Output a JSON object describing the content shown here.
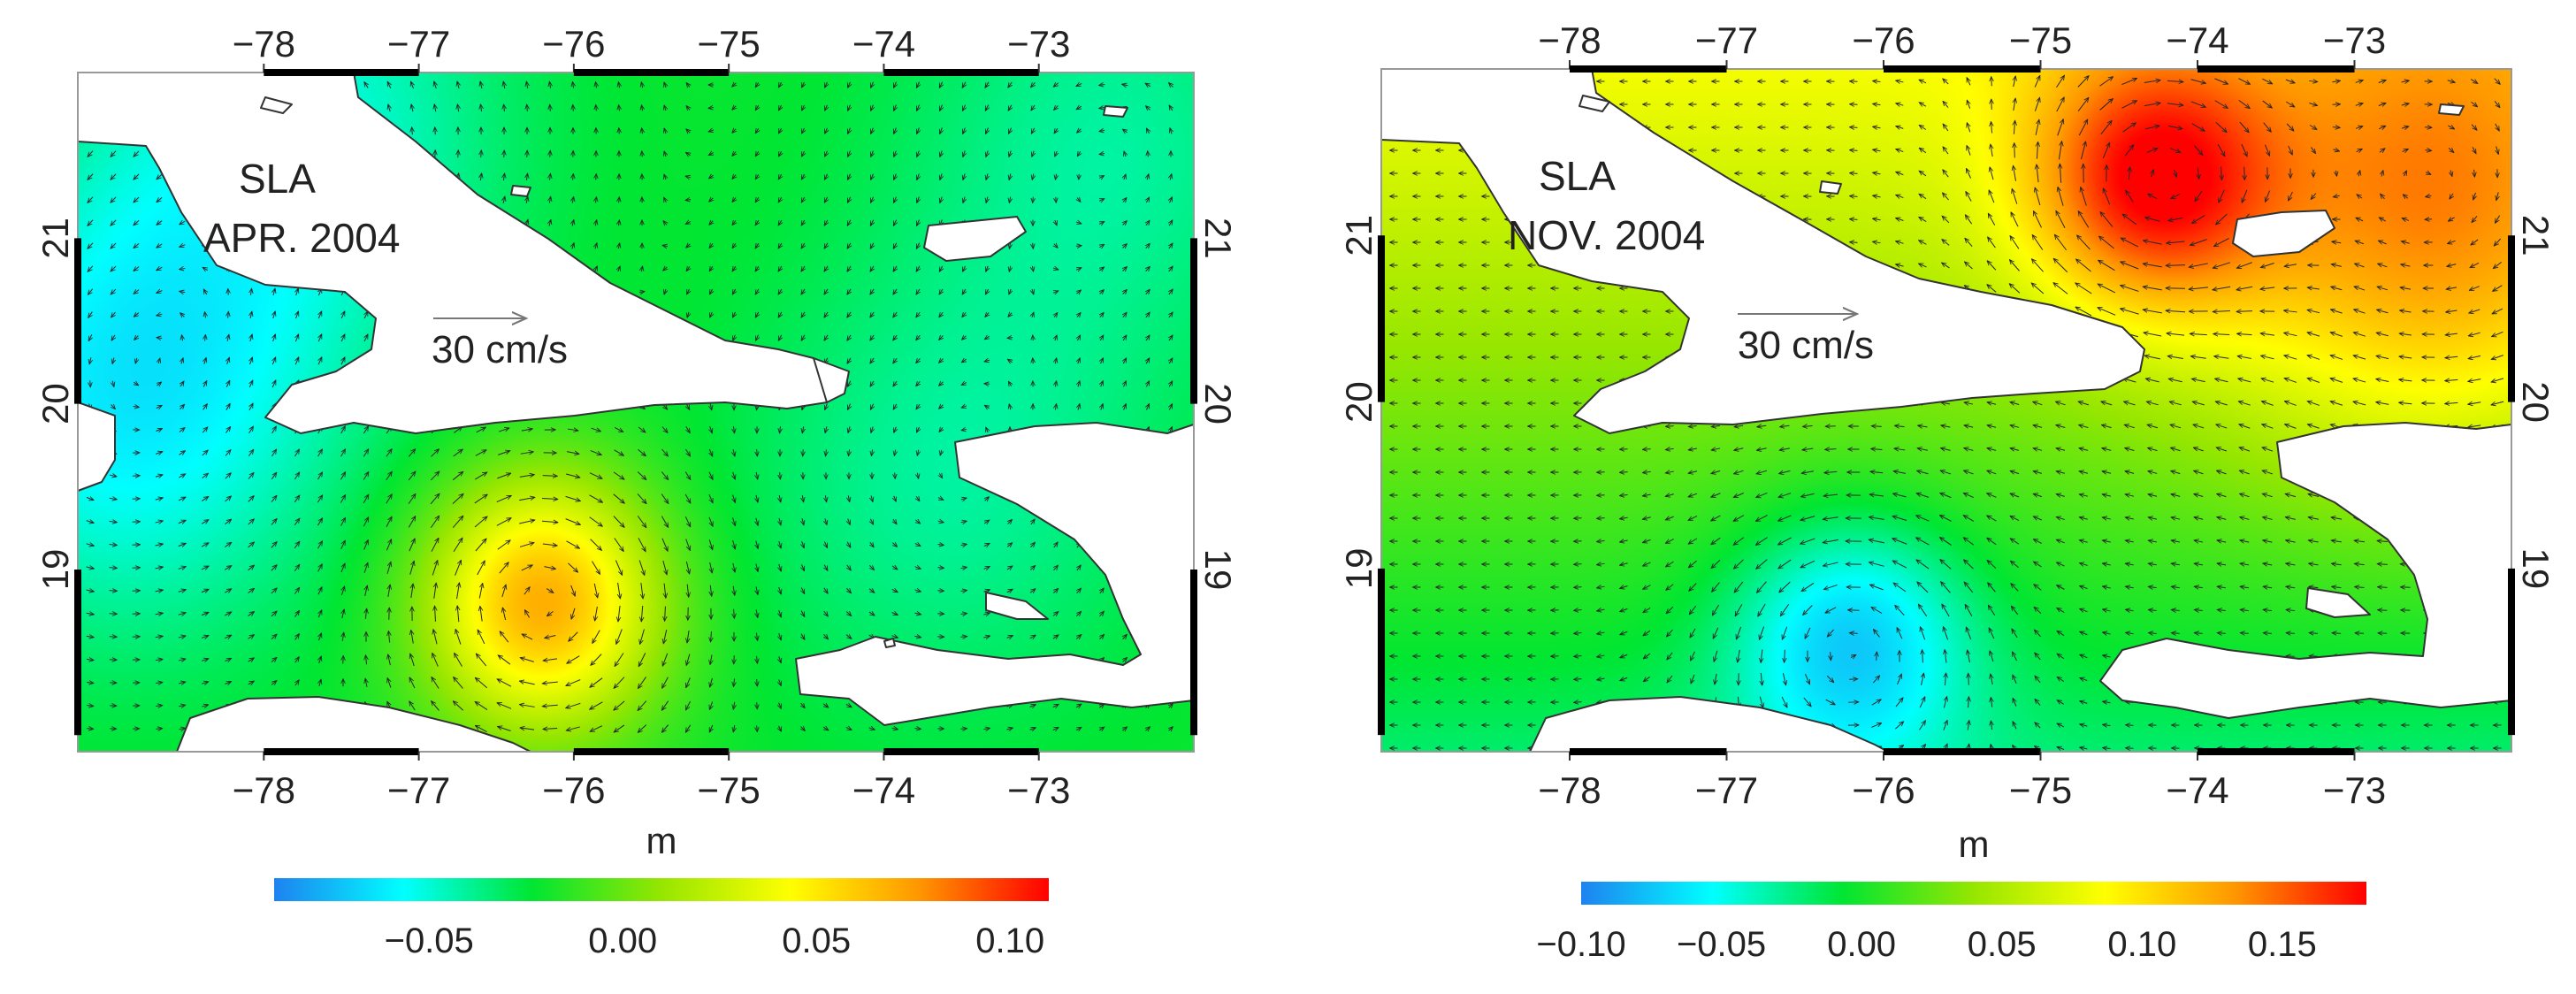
{
  "chart_data": [
    {
      "type": "heatmap",
      "title": "SLA",
      "subtitle": "APR. 2004",
      "unit_label": "m",
      "colorbar_ticks": [
        "−0.05",
        "0.00",
        "0.05",
        "0.10"
      ],
      "colorbar_range": [
        -0.09,
        0.11
      ],
      "vector_scale_label": "30 cm/s",
      "x_ticks": [
        "−78",
        "−77",
        "−76",
        "−75",
        "−74",
        "−73"
      ],
      "y_ticks": [
        "21",
        "20",
        "19"
      ],
      "xlim": [
        -79.2,
        -72.0
      ],
      "ylim": [
        17.9,
        22.0
      ],
      "field_features": [
        {
          "type": "anticyclonic_eddy",
          "lon": -76.2,
          "lat": 18.8,
          "sla": 0.07
        },
        {
          "type": "low",
          "lon": -78.9,
          "lat": 20.0,
          "sla": -0.06
        },
        {
          "type": "low",
          "lon": -77.8,
          "lat": 21.7,
          "sla": -0.05
        },
        {
          "type": "low",
          "lon": -73.6,
          "lat": 19.5,
          "sla": -0.04
        },
        {
          "type": "low",
          "lon": -72.5,
          "lat": 21.6,
          "sla": -0.04
        }
      ]
    },
    {
      "type": "heatmap",
      "title": "SLA",
      "subtitle": "NOV. 2004",
      "unit_label": "m",
      "colorbar_ticks": [
        "−0.10",
        "−0.05",
        "0.00",
        "0.05",
        "0.10",
        "0.15"
      ],
      "colorbar_range": [
        -0.1,
        0.18
      ],
      "vector_scale_label": "30 cm/s",
      "x_ticks": [
        "−78",
        "−77",
        "−76",
        "−75",
        "−74",
        "−73"
      ],
      "y_ticks": [
        "21",
        "20",
        "19"
      ],
      "xlim": [
        -79.2,
        -72.0
      ],
      "ylim": [
        17.9,
        22.0
      ],
      "field_features": [
        {
          "type": "anticyclonic_eddy",
          "lon": -74.3,
          "lat": 21.3,
          "sla": 0.13
        },
        {
          "type": "high",
          "lon": -72.5,
          "lat": 21.0,
          "sla": 0.1
        },
        {
          "type": "cyclonic_eddy",
          "lon": -76.2,
          "lat": 18.6,
          "sla": -0.05
        }
      ]
    }
  ],
  "colors": {
    "colormap": [
      "#1e82f0",
      "#00ffff",
      "#00e632",
      "#96e600",
      "#ffff00",
      "#ff9600",
      "#ff0000"
    ],
    "land": "#ffffff",
    "coast": "#333333",
    "vectors": "#262626"
  }
}
